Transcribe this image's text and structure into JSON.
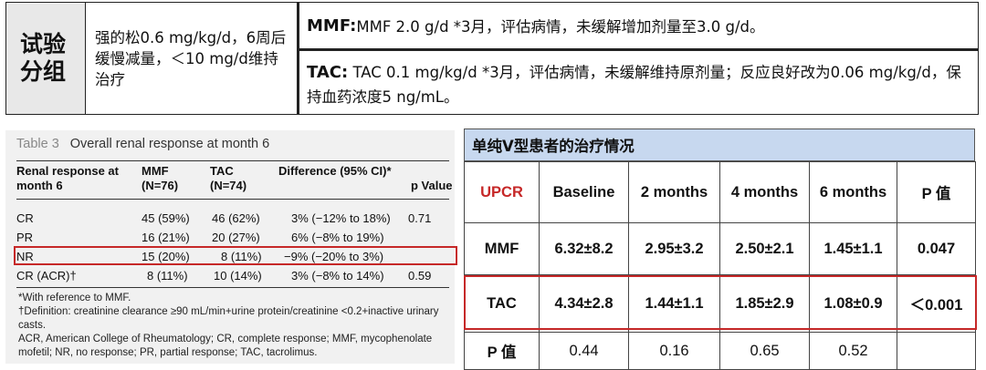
{
  "top": {
    "row_header": "试验分组",
    "steroid": "强的松0.6 mg/kg/d，6周后缓慢减量，＜10 mg/d维持治疗",
    "mmf_label": "MMF:",
    "mmf_text": " MMF 2.0 g/d *3月，评估病情，未缓解增加剂量至3.0 g/d。",
    "tac_label": "TAC:",
    "tac_text": " TAC 0.1 mg/kg/d *3月，评估病情，未缓解维持原剂量；反应良好改为0.06 mg/kg/d，保持血药浓度5 ng/mL。"
  },
  "left_table": {
    "table_no": "Table 3",
    "title": "Overall renal response at month 6",
    "headers": [
      "Renal response at month 6",
      "MMF (N=76)",
      "TAC (N=74)",
      "Difference (95% CI)*",
      "p Value"
    ],
    "rows": [
      {
        "label": "CR",
        "mmf": "45 (59%)",
        "tac": "46 (62%)",
        "diff": "3% (−12% to 18%)",
        "p": "0.71"
      },
      {
        "label": "PR",
        "mmf": "16 (21%)",
        "tac": "20 (27%)",
        "diff": "6% (−8% to 19%)",
        "p": ""
      },
      {
        "label": "NR",
        "mmf": "15 (20%)",
        "tac": "8 (11%)",
        "diff": "−9% (−20% to 3%)",
        "p": ""
      },
      {
        "label": "CR (ACR)†",
        "mmf": "8 (11%)",
        "tac": "10 (14%)",
        "diff": "3% (−8% to 14%)",
        "p": "0.59"
      }
    ],
    "footnotes": [
      "*With reference to MMF.",
      "†Definition: creatinine clearance ≥90 mL/min+urine protein/creatinine <0.2+inactive urinary casts.",
      "ACR, American College of Rheumatology; CR, complete response; MMF, mycophenolate mofetil; NR, no response; PR, partial response; TAC, tacrolimus."
    ]
  },
  "right_table": {
    "title": "单纯Ⅴ型患者的治疗情况",
    "headers": [
      "UPCR",
      "Baseline",
      "2 months",
      "4 months",
      "6 months",
      "P 值"
    ],
    "rows": [
      {
        "label": "MMF",
        "cells": [
          "6.32±8.2",
          "2.95±3.2",
          "2.50±2.1",
          "1.45±1.1",
          "0.047"
        ]
      },
      {
        "label": "TAC",
        "cells": [
          "4.34±2.8",
          "1.44±1.1",
          "1.85±2.9",
          "1.08±0.9",
          "＜0.001"
        ]
      },
      {
        "label": "P 值",
        "cells": [
          "0.44",
          "0.16",
          "0.65",
          "0.52",
          ""
        ]
      }
    ],
    "colors": {
      "header_bg": "#c7d8ef",
      "accent_red": "#c62828"
    }
  }
}
